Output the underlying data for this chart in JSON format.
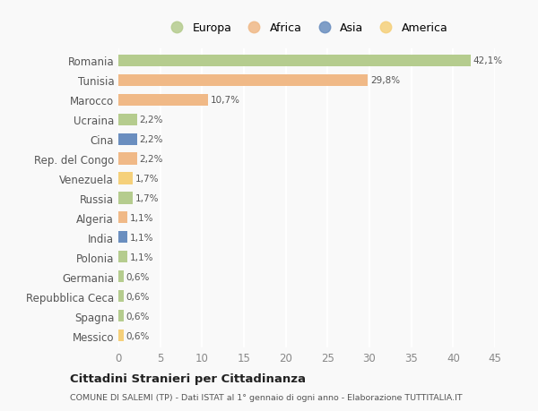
{
  "categories": [
    "Romania",
    "Tunisia",
    "Marocco",
    "Ucraina",
    "Cina",
    "Rep. del Congo",
    "Venezuela",
    "Russia",
    "Algeria",
    "India",
    "Polonia",
    "Germania",
    "Repubblica Ceca",
    "Spagna",
    "Messico"
  ],
  "values": [
    42.1,
    29.8,
    10.7,
    2.2,
    2.2,
    2.2,
    1.7,
    1.7,
    1.1,
    1.1,
    1.1,
    0.6,
    0.6,
    0.6,
    0.6
  ],
  "labels": [
    "42,1%",
    "29,8%",
    "10,7%",
    "2,2%",
    "2,2%",
    "2,2%",
    "1,7%",
    "1,7%",
    "1,1%",
    "1,1%",
    "1,1%",
    "0,6%",
    "0,6%",
    "0,6%",
    "0,6%"
  ],
  "colors": [
    "#b5cc8e",
    "#f0b987",
    "#f0b987",
    "#b5cc8e",
    "#6a8ebf",
    "#f0b987",
    "#f5d07a",
    "#b5cc8e",
    "#f0b987",
    "#6a8ebf",
    "#b5cc8e",
    "#b5cc8e",
    "#b5cc8e",
    "#b5cc8e",
    "#f5d07a"
  ],
  "legend_labels": [
    "Europa",
    "Africa",
    "Asia",
    "America"
  ],
  "legend_colors": [
    "#b5cc8e",
    "#f0b987",
    "#6a8ebf",
    "#f5d07a"
  ],
  "xlim": [
    0,
    45
  ],
  "xticks": [
    0,
    5,
    10,
    15,
    20,
    25,
    30,
    35,
    40,
    45
  ],
  "title": "Cittadini Stranieri per Cittadinanza",
  "subtitle": "COMUNE DI SALEMI (TP) - Dati ISTAT al 1° gennaio di ogni anno - Elaborazione TUTTITALIA.IT",
  "background_color": "#f9f9f9",
  "bar_height": 0.6
}
